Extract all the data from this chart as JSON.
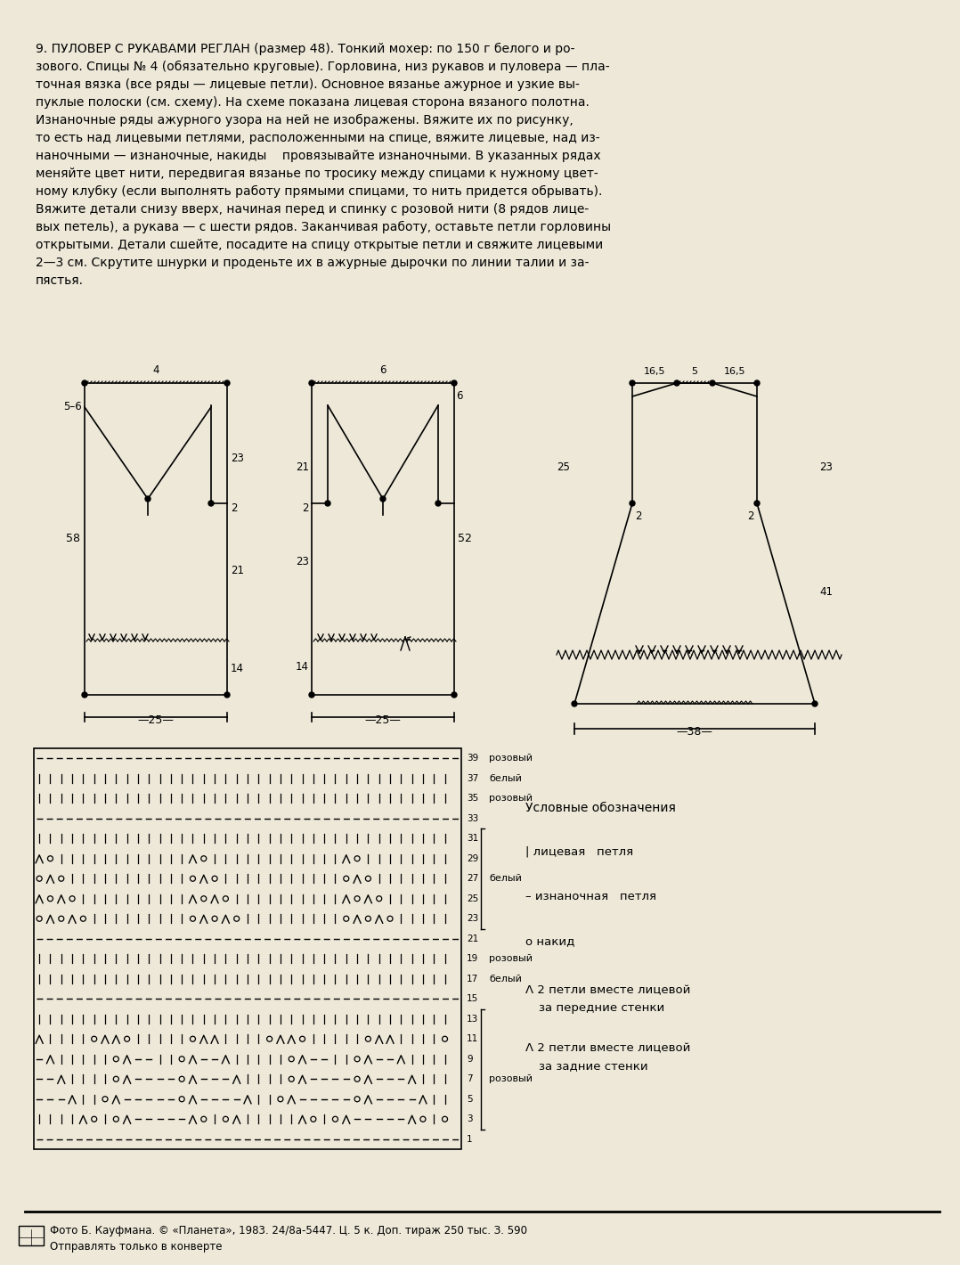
{
  "bg_color": "#ede8d8",
  "title_lines": [
    "9. ПУЛОВЕР С РУКАВАМИ РЕГЛАН (размер 48). Тонкий мохер: по 150 г белого и ро-",
    "зового. Спицы № 4 (обязательно круговые). Горловина, низ рукавов и пуловера — пла-",
    "точная вязка (все ряды — лицевые петли). Основное вязанье ажурное и узкие вы-",
    "пуклые полоски (см. схему). На схеме показана лицевая сторона вязаного полотна.",
    "Изнаночные ряды ажурного узора на ней не изображены. Вяжите их по рисунку,",
    "то есть над лицевыми петлями, расположенными на спице, вяжите лицевые, над из-",
    "наночными — изнаночные, накиды    провязывайте изнаночными. В указанных рядах",
    "меняйте цвет нити, передвигая вязанье по тросику между спицами к нужному цвет-",
    "ному клубку (если выполнять работу прямыми спицами, то нить придется обрывать).",
    "Вяжите детали снизу вверх, начиная перед и спинку с розовой нити (8 рядов лице-",
    "вых петель), а рукава — с шести рядов. Заканчивая работу, оставьте петли горловины",
    "открытыми. Детали сшейте, посадите на спицу открытые петли и свяжите лицевыми",
    "2—3 см. Скрутите шнурки и проденьте их в ажурные дырочки по линии талии и за-",
    "пястья."
  ],
  "footer_line1": "Фото Б. Кауфмана. © «Планета», 1983. 24/8а-5447. Ц. 5 к. Доп. тираж 250 тыс. З. 590",
  "footer_line2": "Отправлять только в конверте"
}
